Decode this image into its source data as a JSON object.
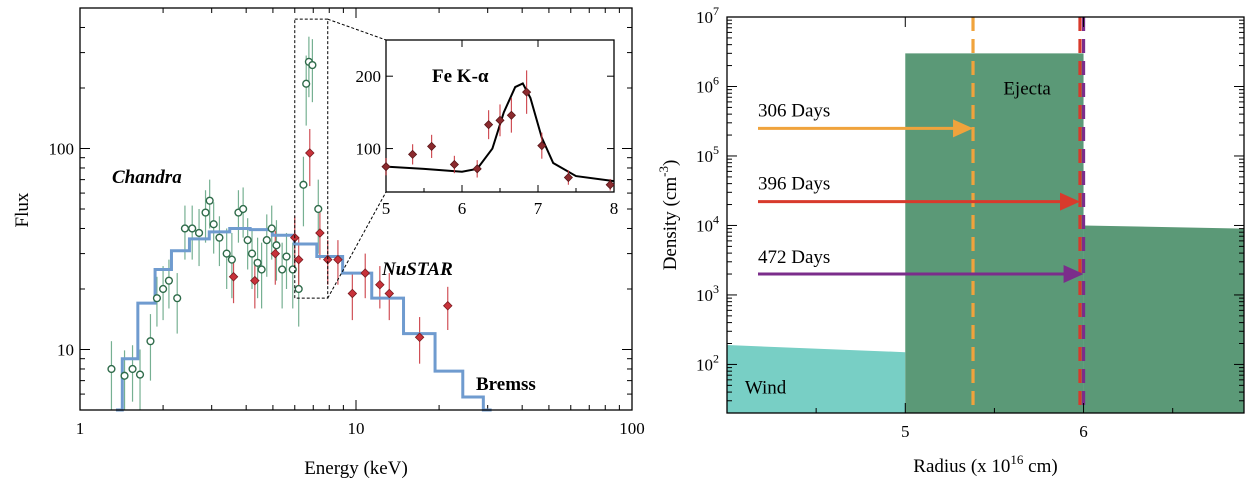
{
  "chart_data": [
    {
      "type": "scatter",
      "xlabel": "Energy (keV)",
      "ylabel": "Flux",
      "x_scale": "log",
      "y_scale": "log",
      "xlim": [
        1,
        100
      ],
      "ylim": [
        5,
        500
      ],
      "x_ticks": [
        {
          "v": 1,
          "label": "1"
        },
        {
          "v": 10,
          "label": "10"
        },
        {
          "v": 100,
          "label": "100"
        }
      ],
      "y_ticks": [
        {
          "v": 10,
          "label": "10"
        },
        {
          "v": 100,
          "label": "100"
        }
      ],
      "series": [
        {
          "name": "Chandra",
          "color": "#5fa37f",
          "marker": "open-circle",
          "points": [
            [
              1.3,
              8,
              3
            ],
            [
              1.45,
              7.4,
              2.5
            ],
            [
              1.55,
              8,
              2.5
            ],
            [
              1.65,
              7.5,
              2.5
            ],
            [
              1.8,
              11,
              4
            ],
            [
              1.9,
              18,
              5
            ],
            [
              2.0,
              20,
              6
            ],
            [
              2.1,
              22,
              6
            ],
            [
              2.25,
              18,
              6
            ],
            [
              2.4,
              40,
              12
            ],
            [
              2.55,
              40,
              12
            ],
            [
              2.7,
              38,
              12
            ],
            [
              2.85,
              48,
              14
            ],
            [
              2.95,
              55,
              15
            ],
            [
              3.05,
              42,
              12
            ],
            [
              3.2,
              36,
              10
            ],
            [
              3.4,
              30,
              10
            ],
            [
              3.55,
              28,
              10
            ],
            [
              3.75,
              48,
              14
            ],
            [
              3.9,
              50,
              14
            ],
            [
              4.05,
              35,
              10
            ],
            [
              4.2,
              30,
              10
            ],
            [
              4.4,
              27,
              9
            ],
            [
              4.55,
              25,
              9
            ],
            [
              4.75,
              35,
              12
            ],
            [
              4.95,
              40,
              12
            ],
            [
              5.15,
              33,
              11
            ],
            [
              5.4,
              25,
              9
            ],
            [
              5.6,
              29,
              9
            ],
            [
              5.9,
              25,
              9
            ],
            [
              6.2,
              20,
              7
            ],
            [
              6.45,
              66,
              25
            ],
            [
              6.6,
              210,
              80
            ],
            [
              6.75,
              270,
              90
            ],
            [
              6.95,
              260,
              90
            ],
            [
              7.3,
              50,
              20
            ]
          ]
        },
        {
          "name": "NuSTAR",
          "color": "#c8323a",
          "marker": "filled-diamond",
          "points": [
            [
              3.6,
              23,
              6
            ],
            [
              4.3,
              22,
              6
            ],
            [
              5.1,
              30,
              9
            ],
            [
              6.0,
              36,
              10
            ],
            [
              6.2,
              28,
              8
            ],
            [
              6.8,
              95,
              30
            ],
            [
              7.4,
              38,
              10
            ],
            [
              7.9,
              28,
              7
            ],
            [
              8.6,
              28,
              7
            ],
            [
              9.7,
              19,
              5
            ],
            [
              10.8,
              24,
              6
            ],
            [
              12.2,
              21,
              5
            ],
            [
              13.2,
              19,
              5
            ],
            [
              17.0,
              11.5,
              3
            ],
            [
              21.5,
              16.5,
              4
            ]
          ]
        }
      ],
      "model": {
        "name": "Bremss",
        "color": "#6f9bcf",
        "x": [
          1.35,
          1.5,
          1.75,
          2.0,
          2.3,
          2.7,
          3.2,
          3.8,
          4.5,
          5.5,
          6.5,
          8,
          10,
          13,
          17,
          22,
          27,
          31
        ],
        "y": [
          5,
          9,
          17,
          25,
          31,
          35.5,
          38.5,
          40,
          39.5,
          37,
          33.5,
          29,
          24,
          18,
          12,
          7.8,
          5.8,
          5
        ]
      },
      "zoom_box": {
        "x": [
          6.0,
          7.9
        ],
        "y": [
          18,
          440
        ]
      },
      "inset": {
        "title": "Fe K-α",
        "xlim": [
          5,
          8
        ],
        "ylim": [
          40,
          250
        ],
        "x_ticks": [
          {
            "v": 5,
            "label": "5"
          },
          {
            "v": 6,
            "label": "6"
          },
          {
            "v": 7,
            "label": "7"
          },
          {
            "v": 8,
            "label": "8"
          }
        ],
        "y_ticks": [
          {
            "v": 100,
            "label": "100"
          },
          {
            "v": 200,
            "label": "200"
          }
        ],
        "points": [
          [
            5.0,
            75,
            12
          ],
          [
            5.35,
            92,
            14
          ],
          [
            5.6,
            103,
            16
          ],
          [
            5.9,
            78,
            12
          ],
          [
            6.2,
            72,
            12
          ],
          [
            6.35,
            133,
            20
          ],
          [
            6.5,
            139,
            22
          ],
          [
            6.65,
            146,
            24
          ],
          [
            6.85,
            178,
            30
          ],
          [
            7.05,
            104,
            18
          ],
          [
            7.4,
            60,
            10
          ],
          [
            7.95,
            50,
            8
          ]
        ],
        "model": {
          "x": [
            5.0,
            5.5,
            6.0,
            6.2,
            6.4,
            6.55,
            6.7,
            6.8,
            6.9,
            7.05,
            7.2,
            7.5,
            8.0
          ],
          "y": [
            75,
            72,
            68,
            72,
            100,
            150,
            185,
            190,
            170,
            115,
            80,
            62,
            55
          ]
        }
      }
    },
    {
      "type": "area",
      "xlabel": "Radius (x 10",
      "xlabel_sup": "16",
      "xlabel_tail": " cm)",
      "ylabel": "Density (cm",
      "ylabel_sup": "-3",
      "ylabel_tail": ")",
      "y_scale": "log",
      "xlim": [
        4.0,
        6.9
      ],
      "ylim": [
        20,
        10000000
      ],
      "x_ticks": [
        {
          "v": 5,
          "label": "5"
        },
        {
          "v": 6,
          "label": "6"
        }
      ],
      "y_ticks": [
        {
          "v": 100,
          "base": "10",
          "exp": "2"
        },
        {
          "v": 1000,
          "base": "10",
          "exp": "3"
        },
        {
          "v": 10000,
          "base": "10",
          "exp": "4"
        },
        {
          "v": 100000,
          "base": "10",
          "exp": "5"
        },
        {
          "v": 1000000,
          "base": "10",
          "exp": "6"
        },
        {
          "v": 10000000,
          "base": "10",
          "exp": "7"
        }
      ],
      "regions": [
        {
          "label": "Wind",
          "color": "#78cfc5",
          "x": [
            4.0,
            5.0
          ],
          "y_top": [
            190,
            150
          ],
          "label_at": [
            4.1,
            50
          ]
        },
        {
          "label": "Ejecta",
          "color": "#5b9977",
          "x": [
            5.0,
            6.0
          ],
          "y_top": [
            3000000,
            3000000
          ],
          "label_at": [
            5.55,
            1000000
          ]
        },
        {
          "label": "",
          "color": "#5b9977",
          "x": [
            6.0,
            6.9
          ],
          "y_top": [
            10000,
            9000
          ]
        }
      ],
      "markers": [
        {
          "label": "306 Days",
          "x": 5.38,
          "color": "#f0a33c",
          "arrow_y": 250000,
          "label_y": 450000
        },
        {
          "label": "396 Days",
          "x": 5.98,
          "color": "#d83a2c",
          "arrow_y": 22000,
          "label_y": 40000
        },
        {
          "label": "472 Days",
          "x": 6.0,
          "color": "#7b2d8b",
          "arrow_y": 2000,
          "label_y": 3500
        }
      ]
    }
  ]
}
